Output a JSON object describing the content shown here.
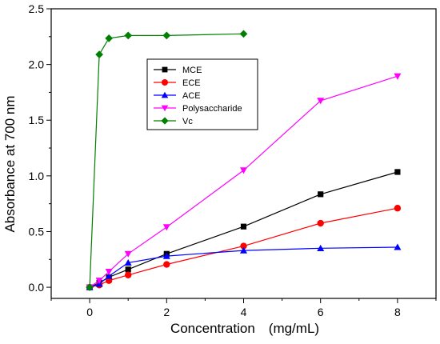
{
  "chart_data": {
    "type": "line",
    "title": "",
    "xlabel": "Concentration　(mg/mL)",
    "ylabel": "Absorbance at 700 nm",
    "xlim": [
      -1,
      9
    ],
    "ylim": [
      -0.1,
      2.5
    ],
    "xticks": [
      0,
      2,
      4,
      6,
      8
    ],
    "yticks": [
      0.0,
      0.5,
      1.0,
      1.5,
      2.0,
      2.5
    ],
    "xtick_labels": [
      "0",
      "2",
      "4",
      "6",
      "8"
    ],
    "ytick_labels": [
      "0.0",
      "0.5",
      "1.0",
      "1.5",
      "2.0",
      "2.5"
    ],
    "grid": false,
    "legend_position": "top-center",
    "series": [
      {
        "name": "MCE",
        "color": "#000000",
        "marker": "square",
        "x": [
          0,
          0.25,
          0.5,
          1,
          2,
          4,
          6,
          8
        ],
        "y": [
          0.0,
          0.04,
          0.09,
          0.16,
          0.3,
          0.545,
          0.835,
          1.035
        ]
      },
      {
        "name": "ECE",
        "color": "#ff0000",
        "marker": "circle",
        "x": [
          0,
          0.25,
          0.5,
          1,
          2,
          4,
          6,
          8
        ],
        "y": [
          0.0,
          0.02,
          0.06,
          0.11,
          0.205,
          0.37,
          0.575,
          0.71
        ]
      },
      {
        "name": "ACE",
        "color": "#0000ff",
        "marker": "triangle-up",
        "x": [
          0,
          0.25,
          0.5,
          1,
          2,
          4,
          6,
          8
        ],
        "y": [
          0.0,
          0.03,
          0.1,
          0.22,
          0.28,
          0.33,
          0.35,
          0.36
        ]
      },
      {
        "name": "Polysaccharide",
        "color": "#ff00ff",
        "marker": "triangle-down",
        "x": [
          0,
          0.25,
          0.5,
          1,
          2,
          4,
          6,
          8
        ],
        "y": [
          0.0,
          0.06,
          0.14,
          0.3,
          0.54,
          1.05,
          1.675,
          1.895
        ]
      },
      {
        "name": "Vc",
        "color": "#008000",
        "marker": "diamond",
        "x": [
          0,
          0.25,
          0.5,
          1,
          2,
          4
        ],
        "y": [
          0.0,
          2.09,
          2.235,
          2.26,
          2.26,
          2.275
        ]
      }
    ]
  }
}
